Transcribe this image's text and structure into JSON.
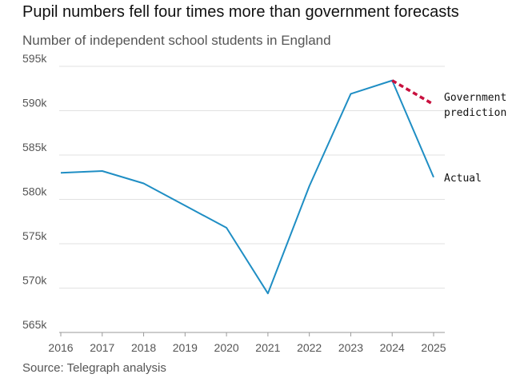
{
  "chart_data": {
    "type": "line",
    "title": "Pupil numbers fell four times more than government forecasts",
    "subtitle": "Number of independent school students in England",
    "source": "Source: Telegraph analysis",
    "x": [
      2016,
      2017,
      2018,
      2019,
      2020,
      2021,
      2022,
      2023,
      2024,
      2025
    ],
    "x_tick_labels": [
      "2016",
      "2017",
      "2018",
      "2019",
      "2020",
      "2021",
      "2022",
      "2023",
      "2024",
      "2025"
    ],
    "y_ticks": [
      565000,
      570000,
      575000,
      580000,
      585000,
      590000,
      595000
    ],
    "y_tick_labels": [
      "565k",
      "570k",
      "575k",
      "580k",
      "585k",
      "590k",
      "595k"
    ],
    "ylim": [
      565000,
      595000
    ],
    "grid": "horizontal",
    "series": [
      {
        "name": "Actual",
        "color": "#1f8ec4",
        "style": "solid",
        "x": [
          2016,
          2017,
          2018,
          2019,
          2020,
          2021,
          2022,
          2023,
          2024,
          2025
        ],
        "values": [
          583000,
          583200,
          581800,
          579300,
          576800,
          569400,
          581500,
          591900,
          593400,
          582500
        ]
      },
      {
        "name": "Government prediction",
        "color": "#c8103e",
        "style": "dashed",
        "x": [
          2024,
          2025
        ],
        "values": [
          593400,
          590700
        ]
      }
    ],
    "annotations": [
      {
        "series": 1,
        "lines": [
          "Government",
          "prediction"
        ]
      },
      {
        "series": 0,
        "lines": [
          "Actual"
        ]
      }
    ]
  }
}
